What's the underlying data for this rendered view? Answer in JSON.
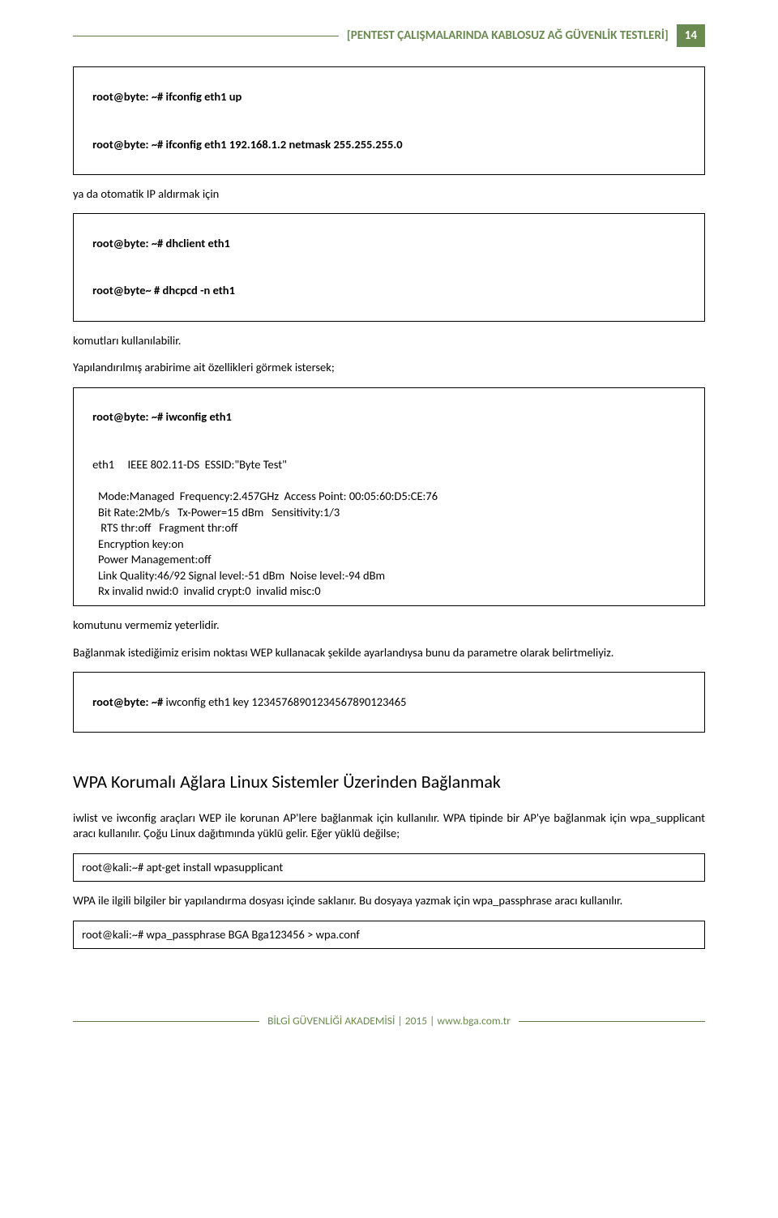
{
  "header": {
    "title": "[PENTEST ÇALIŞMALARINDA  KABLOSUZ AĞ GÜVENLİK TESTLERİ]",
    "page_number": "14"
  },
  "colors": {
    "accent": "#6a8a50",
    "accent_line": "#5f7a4a",
    "page_badge_bg": "#6a8a50",
    "page_badge_fg": "#ffffff",
    "text": "#000000",
    "background": "#ffffff",
    "box_border": "#000000"
  },
  "box1": {
    "prompt1": "root@byte: ~# ",
    "cmd1": "ifconfig eth1 up",
    "prompt2": "root@byte: ~# ",
    "cmd2": "ifconfig eth1 192.168.1.2 netmask 255.255.255.0"
  },
  "p1": "ya da otomatik IP aldırmak için",
  "box2": {
    "prompt1": "root@byte: ~# ",
    "cmd1": "dhclient eth1",
    "prompt2": "root@byte~ # ",
    "cmd2": "dhcpcd -n eth1"
  },
  "p2": "komutları kullanılabilir.",
  "p3": "Yapılandırılmış arabirime ait özellikleri görmek istersek;",
  "box3": {
    "prompt": "root@byte: ~# ",
    "cmd": "iwconfig eth1",
    "l1a": "eth1",
    "l1b": "IEEE 802.11-DS  ESSID:\"Byte Test\"",
    "l2": "Mode:Managed  Frequency:2.457GHz  Access Point: 00:05:60:D5:CE:76",
    "l3": "Bit Rate:2Mb/s   Tx-Power=15 dBm   Sensitivity:1/3",
    "l4": " RTS thr:off   Fragment thr:off",
    "l5": "Encryption key:on",
    "l6": "Power Management:off",
    "l7": "Link Quality:46/92 Signal level:-51 dBm  Noise level:-94 dBm",
    "l8": "Rx invalid nwid:0  invalid crypt:0  invalid misc:0"
  },
  "p4": "komutunu vermemiz yeterlidir.",
  "p5": "Bağlanmak istediğimiz erisim noktası WEP kullanacak şekilde ayarlandıysa bunu da parametre olarak belirtmeliyiz.",
  "box4": {
    "prompt": "root@byte: ~# ",
    "cmd": "iwconfig eth1 key 12345768901234567890123465"
  },
  "heading": "WPA Korumalı Ağlara Linux Sistemler Üzerinden Bağlanmak",
  "p6": "iwlist ve iwconfig araçları WEP ile korunan AP'lere bağlanmak için kullanılır. WPA tipinde bir AP'ye bağlanmak için wpa_supplicant aracı kullanılır. Çoğu Linux dağıtımında yüklü gelir. Eğer yüklü değilse;",
  "box5": {
    "line": "root@kali:~# apt-get install wpasupplicant"
  },
  "p7": "WPA ile ilgili bilgiler bir yapılandırma dosyası içinde saklanır. Bu dosyaya yazmak için wpa_passphrase aracı kullanılır.",
  "box6": {
    "line": "root@kali:~# wpa_passphrase BGA Bga123456 > wpa.conf"
  },
  "footer": {
    "text": "BİLGİ GÜVENLİĞİ AKADEMİSİ | 2015 | www.bga.com.tr"
  }
}
